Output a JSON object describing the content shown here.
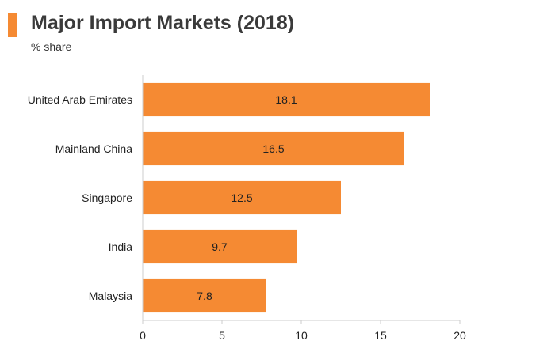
{
  "header": {
    "title": "Major Import Markets (2018)",
    "subtitle": "% share"
  },
  "colors": {
    "accent": "#f58a33",
    "bar": "#f58a33",
    "axis": "#cccccc",
    "text": "#222222"
  },
  "chart_data": {
    "type": "bar",
    "orientation": "horizontal",
    "title": "Major Import Markets (2018)",
    "subtitle": "% share",
    "categories": [
      "United Arab Emirates",
      "Mainland China",
      "Singapore",
      "India",
      "Malaysia"
    ],
    "values": [
      18.1,
      16.5,
      12.5,
      9.7,
      7.8
    ],
    "data_labels": [
      "18.1",
      "16.5",
      "12.5",
      "9.7",
      "7.8"
    ],
    "xlim": [
      0,
      20
    ],
    "xticks": [
      0,
      5,
      10,
      15,
      20
    ],
    "xlabel": "",
    "ylabel": "",
    "grid": false,
    "legend": "none"
  }
}
